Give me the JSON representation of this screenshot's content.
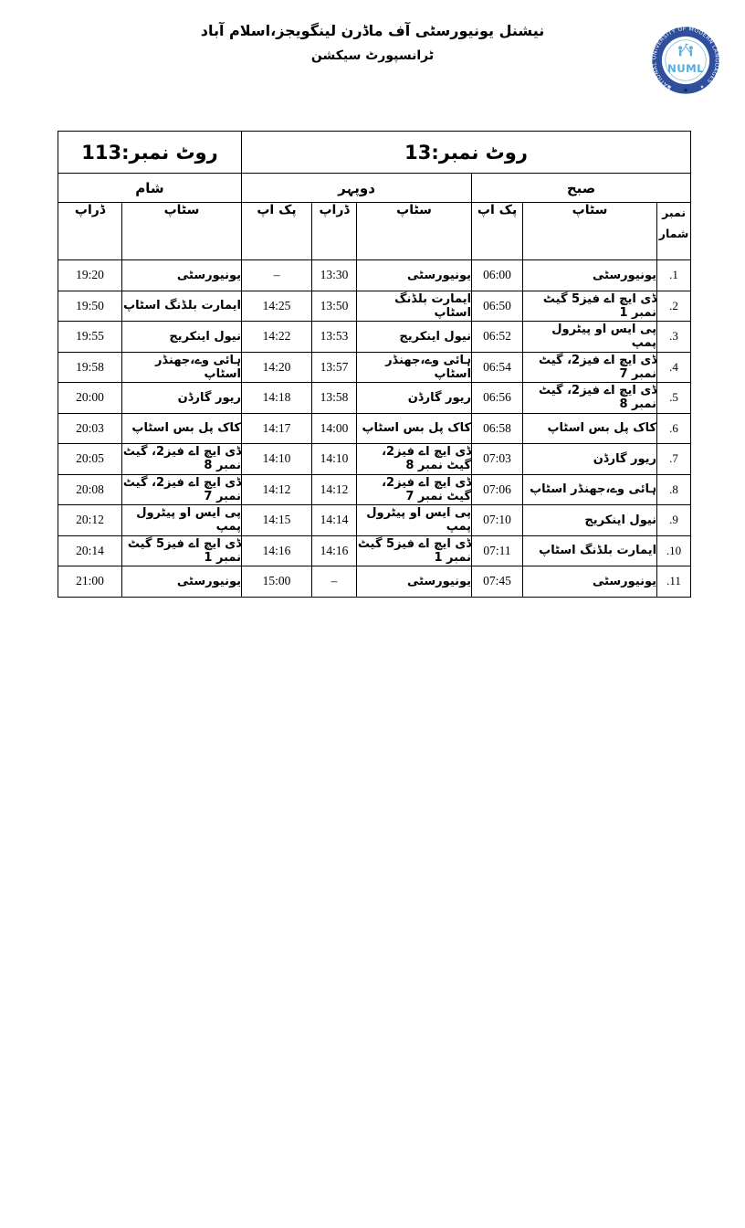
{
  "header": {
    "title_line1": "نیشنل یونیورسٹی آف ماڈرن لینگویجز،اسلام آباد",
    "title_line2": "ٹرانسپورٹ سیکشن"
  },
  "logo": {
    "ring_text": "NATIONAL UNIVERSITY OF MODERN LANGUAGES",
    "monogram": "NUML",
    "star": "★",
    "ring_color": "#2e4f9c",
    "emblem_color": "#58aedc"
  },
  "table": {
    "routes": {
      "right": "روٹ نمبر:13",
      "left": "روٹ نمبر:113"
    },
    "periods": {
      "morning": "صبح",
      "afternoon": "دوپہر",
      "evening": "شام"
    },
    "columns": {
      "serial_line1": "نمبر",
      "serial_line2": "شمار",
      "stop": "سٹاپ",
      "pickup": "پک اپ",
      "drop": "ڈراپ"
    },
    "rows": [
      {
        "sn": ".1",
        "m_stop": "یونیورسٹی",
        "m_pick": "06:00",
        "a_stop": "یونیورسٹی",
        "a_drop": "13:30",
        "a_pick": "–",
        "e_stop": "یونیورسٹی",
        "e_drop": "19:20"
      },
      {
        "sn": ".2",
        "m_stop": "ڈی ایچ اے فیز5 گیٹ نمبر 1",
        "m_pick": "06:50",
        "a_stop": "ایمارت بلڈنگ اسٹاپ",
        "a_drop": "13:50",
        "a_pick": "14:25",
        "e_stop": "ایمارت بلڈنگ اسٹاپ",
        "e_drop": "19:50"
      },
      {
        "sn": ".3",
        "m_stop": "پی ایس او پیٹرول پمپ",
        "m_pick": "06:52",
        "a_stop": "نیول اینکریج",
        "a_drop": "13:53",
        "a_pick": "14:22",
        "e_stop": "نیول اینکریج",
        "e_drop": "19:55"
      },
      {
        "sn": ".4",
        "m_stop": "ڈی ایچ اے فیز2، گیٹ نمبر 7",
        "m_pick": "06:54",
        "a_stop": "ہائی وے،جھنڈر اسٹاپ",
        "a_drop": "13:57",
        "a_pick": "14:20",
        "e_stop": "ہائی وے،جھنڈر اسٹاپ",
        "e_drop": "19:58"
      },
      {
        "sn": ".5",
        "m_stop": "ڈی ایچ اے فیز2، گیٹ نمبر 8",
        "m_pick": "06:56",
        "a_stop": "ریور گارڈن",
        "a_drop": "13:58",
        "a_pick": "14:18",
        "e_stop": "ریور گارڈن",
        "e_drop": "20:00"
      },
      {
        "sn": ".6",
        "m_stop": "کاک پل بس اسٹاپ",
        "m_pick": "06:58",
        "a_stop": "کاک پل بس اسٹاپ",
        "a_drop": "14:00",
        "a_pick": "14:17",
        "e_stop": "کاک پل بس اسٹاپ",
        "e_drop": "20:03"
      },
      {
        "sn": ".7",
        "m_stop": "ریور گارڈن",
        "m_pick": "07:03",
        "a_stop": "ڈی ایچ اے فیز2، گیٹ نمبر 8",
        "a_drop": "14:10",
        "a_pick": "14:10",
        "e_stop": "ڈی ایچ اے فیز2، گیٹ نمبر 8",
        "e_drop": "20:05"
      },
      {
        "sn": ".8",
        "m_stop": "ہائی وے،جھنڈر اسٹاپ",
        "m_pick": "07:06",
        "a_stop": "ڈی ایچ اے فیز2، گیٹ نمبر 7",
        "a_drop": "14:12",
        "a_pick": "14:12",
        "e_stop": "ڈی ایچ اے فیز2، گیٹ نمبر 7",
        "e_drop": "20:08"
      },
      {
        "sn": ".9",
        "m_stop": "نیول اینکریج",
        "m_pick": "07:10",
        "a_stop": "پی ایس او پیٹرول پمپ",
        "a_drop": "14:14",
        "a_pick": "14:15",
        "e_stop": "پی ایس او پیٹرول پمپ",
        "e_drop": "20:12"
      },
      {
        "sn": ".10",
        "m_stop": "ایمارت بلڈنگ اسٹاپ",
        "m_pick": "07:11",
        "a_stop": "ڈی ایچ اے فیز5 گیٹ نمبر 1",
        "a_drop": "14:16",
        "a_pick": "14:16",
        "e_stop": "ڈی ایچ اے فیز5 گیٹ نمبر 1",
        "e_drop": "20:14"
      },
      {
        "sn": ".11",
        "m_stop": "یونیورسٹی",
        "m_pick": "07:45",
        "a_stop": "یونیورسٹی",
        "a_drop": "–",
        "a_pick": "15:00",
        "e_stop": "یونیورسٹی",
        "e_drop": "21:00"
      }
    ]
  }
}
